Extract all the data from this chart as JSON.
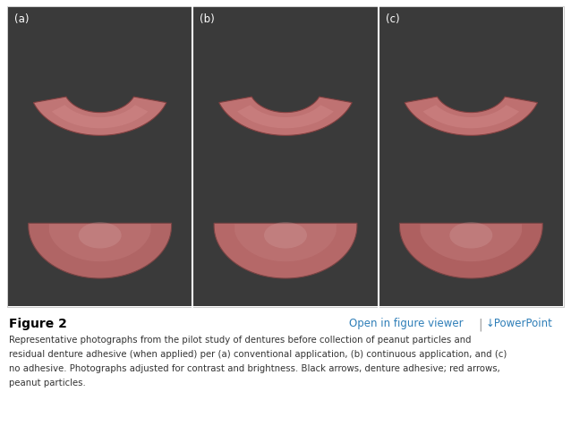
{
  "figure_label": "Figure 2",
  "link_text": "Open in figure viewer",
  "powerpoint_text": "↓PowerPoint",
  "caption_lines": [
    "Representative photographs from the pilot study of dentures before collection of peanut particles and",
    "residual denture adhesive (when applied) per (a) conventional application, (b) continuous application, and (c)",
    "no adhesive. Photographs adjusted for contrast and brightness. Black arrows, denture adhesive; red arrows,",
    "peanut particles."
  ],
  "panel_labels": [
    "(a)",
    "(b)",
    "(c)"
  ],
  "bg_color": "#ffffff",
  "image_bg": "#3a3a3a",
  "border_color": "#cccccc",
  "figure_label_color": "#000000",
  "link_color": "#2e7eb8",
  "caption_color": "#333333",
  "separator_color": "#999999",
  "denture_pink": "#c87878",
  "denture_dark": "#9a5555",
  "denture_light": "#e0a0a0",
  "denture_inner": "#b06868",
  "panel_divider": "#888888"
}
